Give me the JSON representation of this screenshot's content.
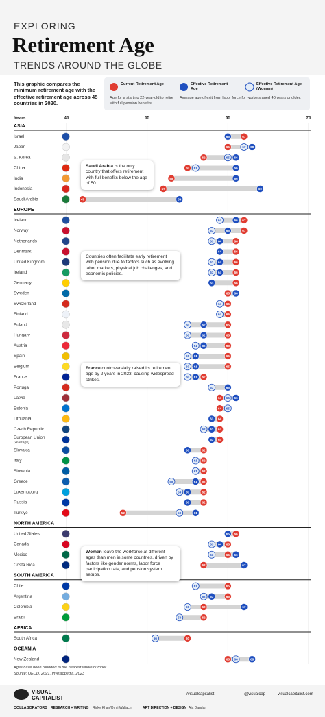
{
  "header": {
    "kicker": "EXPLORING",
    "title": "Retirement Age",
    "subtitle": "TRENDS AROUND THE GLOBE",
    "intro": "This graphic compares the minimum retirement age with the effective retirement age across 45 countries in 2020."
  },
  "chart_data": {
    "type": "dumbbell",
    "axis_label": "Years",
    "xlim": [
      45,
      75
    ],
    "xticks": [
      45,
      55,
      65,
      75
    ],
    "grid": true,
    "range_color": "#d4d4d4",
    "series": [
      {
        "name": "Current Retirement Age",
        "description": "Age for a starting 22-year-old to retire with full pension benefits.",
        "color": "#e03c31"
      },
      {
        "name": "Effective Retirement Age",
        "description": "Average age of exit from labor force for workers aged 40 years or older.",
        "color": "#1f4fbf"
      },
      {
        "name": "Effective Retirement Age (Women)",
        "color": "#e3ecf7"
      }
    ],
    "groups": [
      {
        "name": "ASIA",
        "rows": [
          {
            "name": "Israel",
            "flag": "#1d4fa8",
            "values": [
              67,
              65,
              null
            ]
          },
          {
            "name": "Japan",
            "flag": "#f2f2f2",
            "values": [
              65,
              68,
              67
            ]
          },
          {
            "name": "S. Korea",
            "flag": "#e6e6e6",
            "values": [
              62,
              66,
              65
            ]
          },
          {
            "name": "China",
            "flag": "#de2910",
            "values": [
              60,
              66,
              61
            ]
          },
          {
            "name": "India",
            "flag": "#f29933",
            "values": [
              58,
              66,
              null
            ]
          },
          {
            "name": "Indonesia",
            "flag": "#d9261c",
            "values": [
              57,
              69,
              null
            ]
          },
          {
            "name": "Saudi Arabia",
            "flag": "#1a7a3a",
            "values": [
              47,
              59,
              null
            ]
          }
        ]
      },
      {
        "name": "EUROPE",
        "rows": [
          {
            "name": "Iceland",
            "flag": "#1f4fa0",
            "values": [
              67,
              66,
              64
            ]
          },
          {
            "name": "Norway",
            "flag": "#c8102e",
            "values": [
              67,
              65,
              63
            ]
          },
          {
            "name": "Netherlands",
            "flag": "#21468b",
            "values": [
              66,
              64,
              63
            ]
          },
          {
            "name": "Denmark",
            "flag": "#c8102e",
            "values": [
              66,
              64,
              null
            ]
          },
          {
            "name": "United Kingdom",
            "flag": "#1d3a7a",
            "values": [
              66,
              64,
              63
            ]
          },
          {
            "name": "Ireland",
            "flag": "#169b62",
            "values": [
              66,
              64,
              63
            ]
          },
          {
            "name": "Germany",
            "flag": "#ffce00",
            "values": [
              66,
              63,
              null
            ]
          },
          {
            "name": "Sweden",
            "flag": "#006aa7",
            "values": [
              65,
              66,
              null
            ]
          },
          {
            "name": "Switzerland",
            "flag": "#d52b1e",
            "values": [
              65,
              null,
              64
            ]
          },
          {
            "name": "Finland",
            "flag": "#eef2f8",
            "values": [
              65,
              65,
              64
            ]
          },
          {
            "name": "Poland",
            "flag": "#e8e8e8",
            "values": [
              65,
              62,
              60
            ]
          },
          {
            "name": "Hungary",
            "flag": "#cd2a3e",
            "values": [
              65,
              62,
              60
            ]
          },
          {
            "name": "Austria",
            "flag": "#ed2939",
            "values": [
              65,
              62,
              61
            ]
          },
          {
            "name": "Spain",
            "flag": "#f1bf00",
            "values": [
              65,
              61,
              60
            ]
          },
          {
            "name": "Belgium",
            "flag": "#fdda24",
            "values": [
              65,
              61,
              60
            ]
          },
          {
            "name": "France",
            "flag": "#002395",
            "values": [
              62,
              61,
              60
            ]
          },
          {
            "name": "Portugal",
            "flag": "#d52b1e",
            "values": [
              null,
              65,
              63
            ]
          },
          {
            "name": "Latvia",
            "flag": "#9e3039",
            "values": [
              64,
              66,
              65
            ]
          },
          {
            "name": "Estonia",
            "flag": "#0072ce",
            "values": [
              64,
              null,
              65
            ]
          },
          {
            "name": "Lithuania",
            "flag": "#fdb913",
            "values": [
              64,
              63,
              null
            ]
          },
          {
            "name": "Czech Republic",
            "flag": "#11457e",
            "values": [
              64,
              63,
              62
            ]
          },
          {
            "name": "European Union",
            "note": "(Average)",
            "flag": "#003399",
            "values": [
              64,
              63,
              null
            ]
          },
          {
            "name": "Slovakia",
            "flag": "#0b4ea2",
            "values": [
              62,
              60,
              null
            ]
          },
          {
            "name": "Italy",
            "flag": "#009246",
            "values": [
              62,
              null,
              61
            ]
          },
          {
            "name": "Slovenia",
            "flag": "#005da4",
            "values": [
              62,
              null,
              61
            ]
          },
          {
            "name": "Greece",
            "flag": "#0d5eaf",
            "values": [
              62,
              61,
              58
            ]
          },
          {
            "name": "Luxembourg",
            "flag": "#00a1de",
            "values": [
              62,
              60,
              59
            ]
          },
          {
            "name": "Russia",
            "flag": "#0039a6",
            "values": [
              62,
              60,
              null
            ]
          },
          {
            "name": "Türkiye",
            "flag": "#e30a17",
            "values": [
              52,
              61,
              59
            ]
          }
        ]
      },
      {
        "name": "NORTH AMERICA",
        "rows": [
          {
            "name": "United States",
            "flag": "#3c3b6e",
            "values": [
              66,
              65,
              null
            ]
          },
          {
            "name": "Canada",
            "flag": "#d80621",
            "values": [
              65,
              64,
              63
            ]
          },
          {
            "name": "Mexico",
            "flag": "#006847",
            "values": [
              65,
              66,
              63
            ]
          },
          {
            "name": "Costa Rica",
            "flag": "#002b7f",
            "values": [
              62,
              67,
              null
            ]
          }
        ]
      },
      {
        "name": "SOUTH AMERICA",
        "rows": [
          {
            "name": "Chile",
            "flag": "#0039a6",
            "values": [
              65,
              null,
              61
            ]
          },
          {
            "name": "Argentina",
            "flag": "#74acdf",
            "values": [
              65,
              63,
              62
            ]
          },
          {
            "name": "Colombia",
            "flag": "#fcd116",
            "values": [
              62,
              67,
              60
            ]
          },
          {
            "name": "Brazil",
            "flag": "#009c3b",
            "values": [
              62,
              null,
              59
            ]
          }
        ]
      },
      {
        "name": "AFRICA",
        "rows": [
          {
            "name": "South Africa",
            "flag": "#007a4d",
            "values": [
              60,
              null,
              56
            ]
          }
        ]
      },
      {
        "name": "OCEANIA",
        "rows": [
          {
            "name": "New Zealand",
            "flag": "#00247d",
            "values": [
              65,
              68,
              66
            ]
          }
        ]
      }
    ],
    "annotations": [
      {
        "bold": "Saudi Arabia",
        "text": " is the only country that offers retirement with full benefits below the age of 50."
      },
      {
        "text": "Countries often facilitate early retirement with pension due to factors such as evolving labor markets, physical job challenges, and economic policies."
      },
      {
        "bold": "France",
        "text": " controversially raised its retirement age by 2 years in 2023, causing widespread strikes."
      },
      {
        "bold": "Women",
        "text": " leave the workforce at different ages than men in some countries, driven by factors like gender norms, labor force participation rate, and pension system setups."
      }
    ]
  },
  "footer": {
    "note": "Ages have been rounded to the nearest whole number.",
    "source": "Source: OECD, 2021, Investopedia, 2023",
    "brand": "VISUAL",
    "brand2": "CAPITALIST",
    "facebook": "/visualcapitalist",
    "twitter": "@visualcap",
    "web": "visualcapitalist.com",
    "collab_label": "COLLABORATORS",
    "research_label": "RESEARCH + WRITING",
    "research": "Ricky Khan/Omri Wallach",
    "art_label": "ART DIRECTION + DESIGN",
    "art": "Ala Dandar"
  }
}
